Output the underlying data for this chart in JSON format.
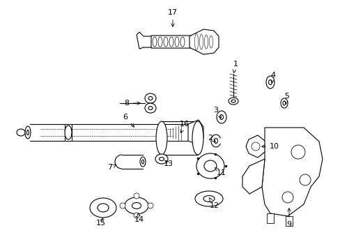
{
  "background": "#ffffff",
  "line_color": "#000000",
  "fig_w": 4.89,
  "fig_h": 3.6,
  "dpi": 100,
  "font_size": 8,
  "lw": 0.8
}
